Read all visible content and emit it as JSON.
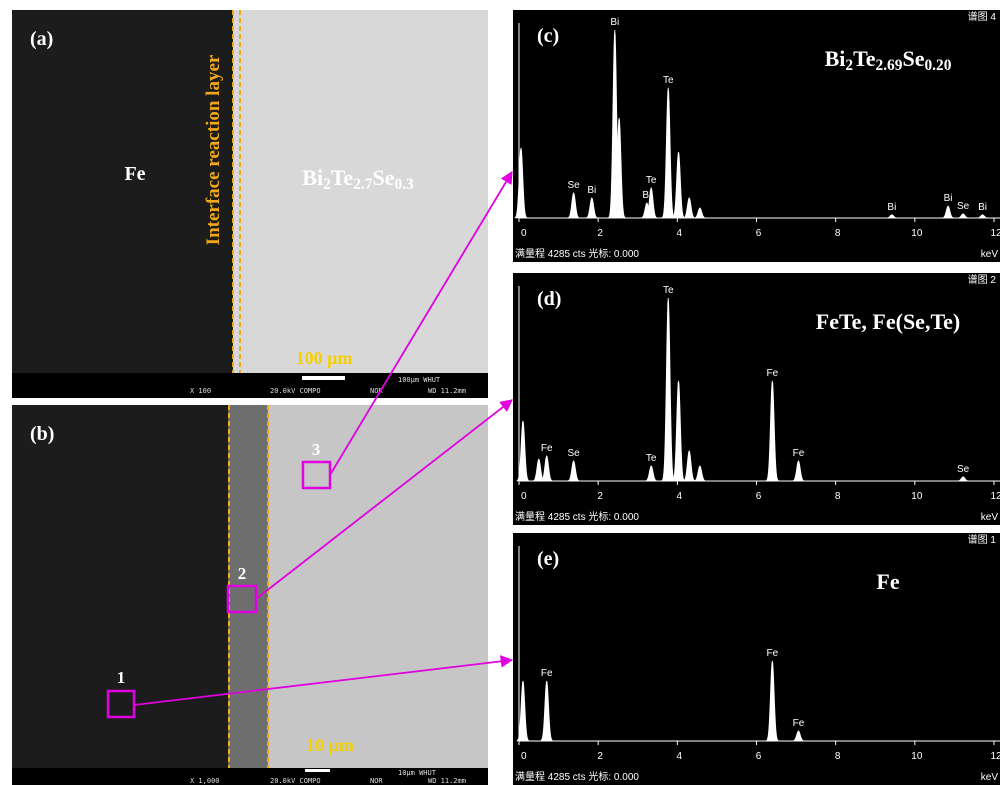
{
  "sem_images": [
    {
      "label": "(a)",
      "left_phase": "Fe",
      "right_phase": [
        "Bi",
        "2",
        "Te",
        "2.7",
        "Se",
        "0.3"
      ],
      "layer": "Interface reaction layer",
      "scale": "100 μm",
      "info": {
        "mag": "X 100",
        "kv": "20.0kV COMPO",
        "mode": "NOR",
        "bar": "100μm WHUT",
        "wd": "WD 11.2mm"
      }
    },
    {
      "label": "(b)",
      "points": [
        "1",
        "2",
        "3"
      ],
      "scale": "10 μm",
      "info": {
        "mag": "X 1,000",
        "kv": "20.0kV COMPO",
        "mode": "NOR",
        "bar": "10μm WHUT",
        "wd": "WD 11.2mm"
      }
    }
  ],
  "spectra": [
    {
      "label": "(c)",
      "spectrum_id": "谱图 4",
      "composition": [
        "Bi",
        "2",
        "Te",
        "2.69",
        "Se",
        "0.20"
      ],
      "footer": "满量程 4285 cts 光标: 0.000",
      "x_unit": "keV",
      "xlim": [
        0,
        12
      ],
      "xticks": [
        0,
        2,
        4,
        6,
        8,
        10,
        12
      ],
      "ylim": [
        0,
        4285
      ],
      "peaks": [
        {
          "energy": 0.05,
          "counts": 1540,
          "label": null
        },
        {
          "energy": 1.38,
          "counts": 550,
          "label": "Se"
        },
        {
          "energy": 1.84,
          "counts": 440,
          "label": "Bi"
        },
        {
          "energy": 2.42,
          "counts": 4130,
          "label": "Bi"
        },
        {
          "energy": 2.53,
          "counts": 2200,
          "label": null
        },
        {
          "energy": 3.23,
          "counts": 330,
          "label": "Bi"
        },
        {
          "energy": 3.34,
          "counts": 660,
          "label": "Te"
        },
        {
          "energy": 3.77,
          "counts": 2860,
          "label": "Te"
        },
        {
          "energy": 4.03,
          "counts": 1450,
          "label": null
        },
        {
          "energy": 4.3,
          "counts": 440,
          "label": null
        },
        {
          "energy": 4.57,
          "counts": 220,
          "label": null
        },
        {
          "energy": 9.42,
          "counts": 70,
          "label": "Bi"
        },
        {
          "energy": 10.84,
          "counts": 260,
          "label": "Bi"
        },
        {
          "energy": 11.22,
          "counts": 90,
          "label": "Se"
        },
        {
          "energy": 11.71,
          "counts": 70,
          "label": "Bi"
        }
      ]
    },
    {
      "label": "(d)",
      "spectrum_id": "谱图 2",
      "composition": [
        "FeTe, Fe(Se,Te)"
      ],
      "footer": "满量程 4285 cts 光标: 0.000",
      "x_unit": "keV",
      "xlim": [
        0,
        12
      ],
      "xticks": [
        0,
        2,
        4,
        6,
        8,
        10,
        12
      ],
      "ylim": [
        0,
        4285
      ],
      "peaks": [
        {
          "energy": 0.1,
          "counts": 1320,
          "label": null
        },
        {
          "energy": 0.5,
          "counts": 480,
          "label": null
        },
        {
          "energy": 0.7,
          "counts": 550,
          "label": "Fe"
        },
        {
          "energy": 1.38,
          "counts": 440,
          "label": "Se"
        },
        {
          "energy": 3.34,
          "counts": 330,
          "label": "Te"
        },
        {
          "energy": 3.77,
          "counts": 4020,
          "label": "Te"
        },
        {
          "energy": 4.03,
          "counts": 2200,
          "label": null
        },
        {
          "energy": 4.3,
          "counts": 660,
          "label": null
        },
        {
          "energy": 4.57,
          "counts": 330,
          "label": null
        },
        {
          "energy": 6.4,
          "counts": 2200,
          "label": "Fe"
        },
        {
          "energy": 7.06,
          "counts": 440,
          "label": "Fe"
        },
        {
          "energy": 11.22,
          "counts": 90,
          "label": "Se"
        }
      ]
    },
    {
      "label": "(e)",
      "spectrum_id": "谱图 1",
      "composition": [
        "Fe"
      ],
      "footer": "满量程 4285 cts 光标: 0.000",
      "x_unit": "keV",
      "xlim": [
        0,
        12
      ],
      "xticks": [
        0,
        2,
        4,
        6,
        8,
        10,
        12
      ],
      "ylim": [
        0,
        4285
      ],
      "peaks": [
        {
          "energy": 0.1,
          "counts": 1320,
          "label": null
        },
        {
          "energy": 0.7,
          "counts": 1320,
          "label": "Fe"
        },
        {
          "energy": 6.4,
          "counts": 1760,
          "label": "Fe"
        },
        {
          "energy": 7.06,
          "counts": 220,
          "label": "Fe"
        }
      ]
    }
  ]
}
